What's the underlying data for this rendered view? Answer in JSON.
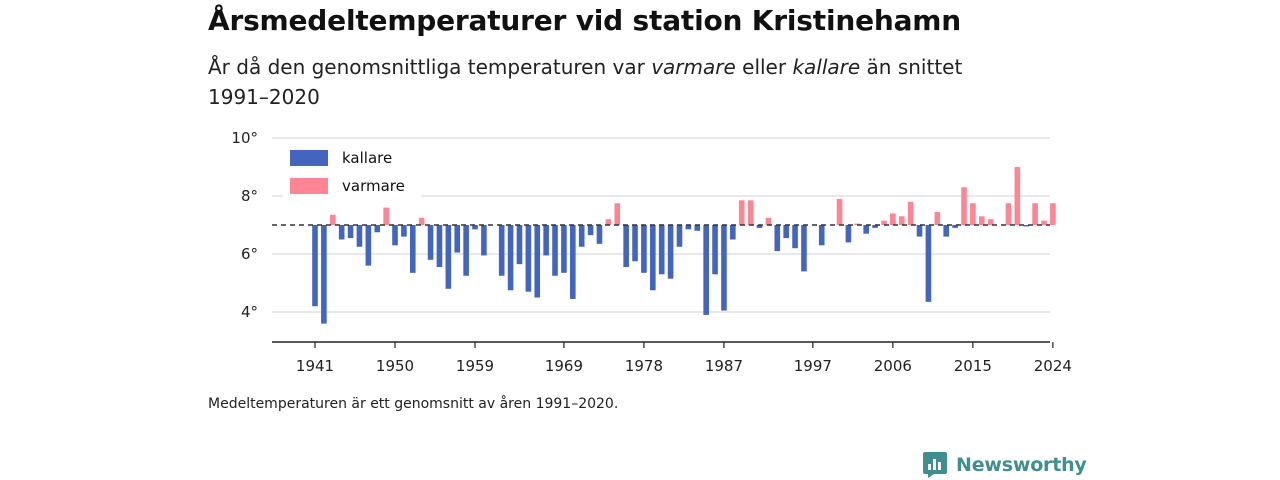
{
  "title": "Årsmedeltemperaturer vid station Kristinehamn",
  "subtitle": {
    "part1": "År då den genomsnittliga temperaturen var ",
    "warmer": "varmare",
    "part2": " eller ",
    "colder": "kallare",
    "part3": " än snittet 1991–2020"
  },
  "footnote": "Medeltemperaturen är ett genomsnitt av åren 1991–2020.",
  "brand": {
    "name": "Newsworthy",
    "icon": "newsworthy-logo-icon",
    "color": "#3e8f8e"
  },
  "chart_data": {
    "type": "bar",
    "baseline": 7.0,
    "baseline_style": "dashed",
    "ylim": [
      3,
      10
    ],
    "y_ticks": [
      4,
      6,
      8,
      10
    ],
    "y_tick_labels": [
      "4°",
      "6°",
      "8°",
      "10°"
    ],
    "x_ticks": [
      1941,
      1950,
      1959,
      1969,
      1978,
      1987,
      1997,
      2006,
      2015,
      2024
    ],
    "x_tick_labels": [
      "1941",
      "1950",
      "1959",
      "1969",
      "1978",
      "1987",
      "1997",
      "2006",
      "2015",
      "2024"
    ],
    "grid": "horizontal",
    "legend": {
      "placement": "top-left",
      "entries": [
        {
          "label": "kallare",
          "color": "#4365bf"
        },
        {
          "label": "varmare",
          "color": "#ff8594"
        }
      ]
    },
    "colors": {
      "colder": "#4365bf",
      "warmer": "#ff8594"
    },
    "x": [
      1941,
      1942,
      1943,
      1944,
      1945,
      1946,
      1947,
      1948,
      1949,
      1950,
      1951,
      1952,
      1953,
      1954,
      1955,
      1956,
      1957,
      1958,
      1959,
      1960,
      1961,
      1962,
      1963,
      1964,
      1965,
      1966,
      1967,
      1968,
      1969,
      1970,
      1971,
      1972,
      1973,
      1974,
      1975,
      1976,
      1977,
      1978,
      1979,
      1980,
      1981,
      1982,
      1983,
      1984,
      1985,
      1986,
      1987,
      1988,
      1989,
      1990,
      1991,
      1992,
      1993,
      1994,
      1995,
      1996,
      1997,
      1998,
      1999,
      2000,
      2001,
      2002,
      2003,
      2004,
      2005,
      2006,
      2007,
      2008,
      2009,
      2010,
      2011,
      2012,
      2013,
      2014,
      2015,
      2016,
      2017,
      2018,
      2019,
      2020,
      2021,
      2022,
      2023,
      2024
    ],
    "values": [
      4.2,
      3.6,
      7.35,
      6.5,
      6.55,
      6.25,
      5.6,
      6.75,
      7.6,
      6.3,
      6.6,
      5.35,
      7.25,
      5.8,
      5.55,
      4.8,
      6.05,
      5.25,
      6.85,
      5.95,
      7.0,
      5.25,
      4.75,
      5.65,
      4.7,
      4.5,
      5.95,
      5.25,
      5.35,
      4.45,
      6.25,
      6.65,
      6.35,
      7.2,
      7.75,
      5.55,
      5.75,
      5.35,
      4.75,
      5.3,
      5.15,
      6.25,
      6.85,
      6.8,
      3.9,
      5.3,
      4.05,
      6.5,
      7.85,
      7.85,
      6.9,
      7.25,
      6.1,
      6.55,
      6.2,
      5.4,
      7.0,
      6.3,
      7.0,
      7.9,
      6.4,
      7.05,
      6.7,
      6.9,
      7.15,
      7.4,
      7.3,
      7.8,
      6.6,
      4.35,
      7.45,
      6.6,
      6.9,
      8.3,
      7.75,
      7.3,
      7.2,
      7.0,
      7.75,
      9.0,
      6.95,
      7.75,
      7.15,
      7.75
    ]
  }
}
